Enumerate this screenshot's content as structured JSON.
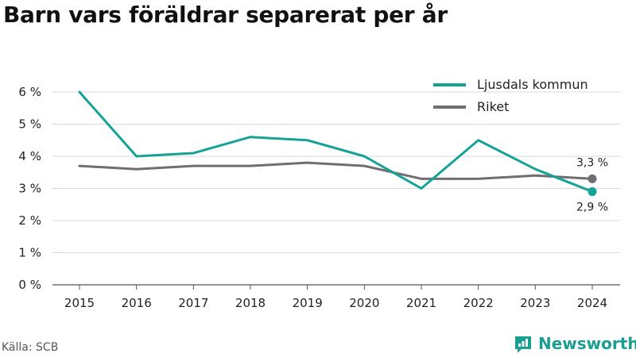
{
  "title": "Barn vars föräldrar separerat per år",
  "source": "Källa: SCB",
  "brand": "Newsworthy",
  "colors": {
    "primary": "#15a398",
    "secondary": "#6e6e73",
    "grid": "#d9d9d9",
    "brand": "#1a9e93"
  },
  "chart_data": {
    "type": "line",
    "title": "Barn vars föräldrar separerat per år",
    "x": [
      "2015",
      "2016",
      "2017",
      "2018",
      "2019",
      "2020",
      "2021",
      "2022",
      "2023",
      "2024"
    ],
    "yticks": [
      "0 %",
      "1 %",
      "2 %",
      "3 %",
      "4 %",
      "5 %",
      "6 %"
    ],
    "ylim": [
      0,
      6
    ],
    "grid": true,
    "legend_position": "top-right",
    "series": [
      {
        "name": "Ljusdals kommun",
        "values": [
          6.0,
          4.0,
          4.1,
          4.6,
          4.5,
          4.0,
          3.0,
          4.5,
          3.6,
          2.9
        ],
        "end_label": "2,9 %"
      },
      {
        "name": "Riket",
        "values": [
          3.7,
          3.6,
          3.7,
          3.7,
          3.8,
          3.7,
          3.3,
          3.3,
          3.4,
          3.3
        ],
        "end_label": "3,3 %"
      }
    ]
  }
}
